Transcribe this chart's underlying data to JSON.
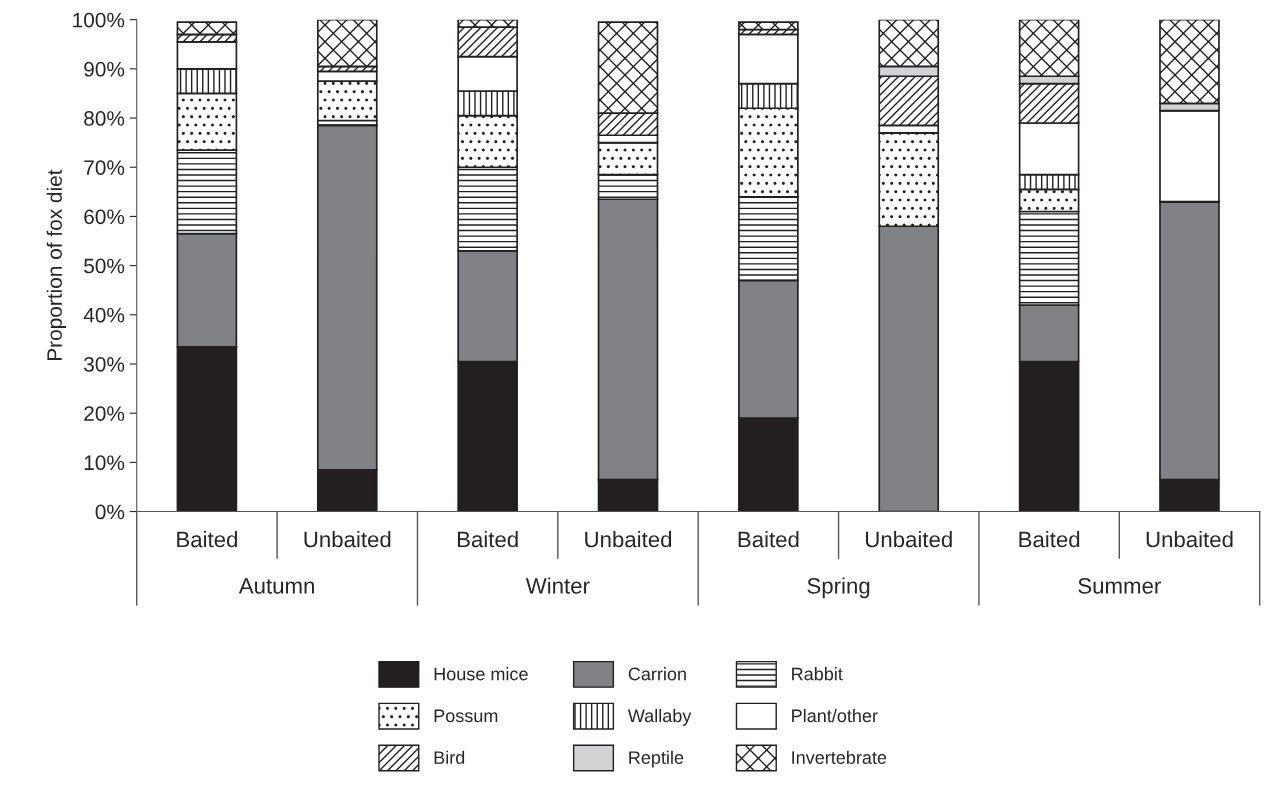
{
  "chart_data": {
    "type": "bar",
    "stacked": true,
    "ylabel": "Proportion of fox diet",
    "categories": [
      "Baited",
      "Unbaited",
      "Baited",
      "Unbaited",
      "Baited",
      "Unbaited",
      "Baited",
      "Unbaited"
    ],
    "annotations": [
      "Autumn",
      "Winter",
      "Spring",
      "Summer"
    ],
    "ylim": [
      0,
      100
    ],
    "yticks": [
      {
        "value": 0,
        "label": "0%"
      },
      {
        "value": 10,
        "label": "10%"
      },
      {
        "value": 20,
        "label": "20%"
      },
      {
        "value": 30,
        "label": "30%"
      },
      {
        "value": 40,
        "label": "40%"
      },
      {
        "value": 50,
        "label": "50%"
      },
      {
        "value": 60,
        "label": "60%"
      },
      {
        "value": 70,
        "label": "70%"
      },
      {
        "value": 80,
        "label": "80%"
      },
      {
        "value": 90,
        "label": "90%"
      },
      {
        "value": 100,
        "label": "100%"
      }
    ],
    "grid": false,
    "legend": "bottom",
    "series": [
      {
        "name": "House mice",
        "color": "#231f20",
        "values": [
          33.5,
          8.5,
          30.5,
          6.5,
          19,
          0,
          30.5,
          6.5
        ]
      },
      {
        "name": "Carrion",
        "color": "#808285",
        "values": [
          23,
          70,
          22.5,
          57,
          28,
          58,
          11.5,
          56.5
        ]
      },
      {
        "name": "Rabbit",
        "color": "#231f20",
        "values": [
          17,
          1,
          17,
          5,
          17,
          0,
          19,
          0
        ]
      },
      {
        "name": "Possum",
        "color": "#231f20",
        "values": [
          11.5,
          8,
          10.5,
          6.5,
          18,
          19,
          4.5,
          0
        ]
      },
      {
        "name": "Wallaby",
        "color": "#231f20",
        "values": [
          5,
          0,
          5,
          0,
          5,
          0,
          3,
          0
        ]
      },
      {
        "name": "Plant/other",
        "color": "#ffffff",
        "values": [
          5.5,
          2,
          7,
          1.5,
          10,
          1.5,
          10.5,
          18.5
        ]
      },
      {
        "name": "Bird",
        "color": "#231f20",
        "values": [
          1.5,
          1,
          6,
          4.5,
          1,
          10,
          8,
          0
        ]
      },
      {
        "name": "Reptile",
        "color": "#d1d3d4",
        "values": [
          null,
          0,
          0,
          null,
          null,
          2,
          1.5,
          1.5
        ]
      },
      {
        "name": "Invertebrate",
        "color": "#231f20",
        "values": [
          2.5,
          9.5,
          1.5,
          18.5,
          1.5,
          9.5,
          11.5,
          17
        ]
      }
    ]
  }
}
